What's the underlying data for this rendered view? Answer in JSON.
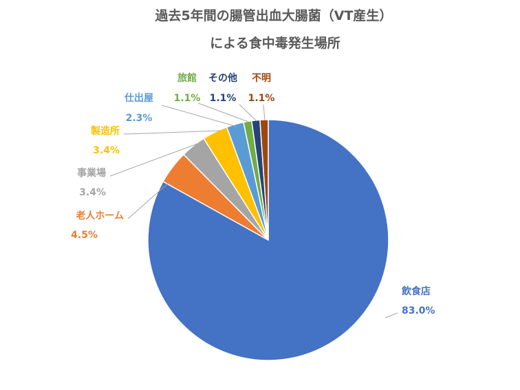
{
  "chart_data": {
    "type": "pie",
    "title_lines": [
      "過去5年間の腸管出血大腸菌（VT産生）",
      "による食中毒発生場所"
    ],
    "categories": [
      "飲食店",
      "老人ホーム",
      "事業場",
      "製造所",
      "仕出屋",
      "旅館",
      "その他",
      "不明"
    ],
    "values": [
      83.0,
      4.5,
      3.4,
      3.4,
      2.3,
      1.1,
      1.1,
      1.1
    ],
    "value_labels": [
      "83.0%",
      "4.5%",
      "3.4%",
      "3.4%",
      "2.3%",
      "1.1%",
      "1.1%",
      "1.1%"
    ],
    "colors": [
      "#4472C4",
      "#ED7D31",
      "#A5A5A5",
      "#FFC000",
      "#5B9BD5",
      "#70AD47",
      "#264478",
      "#9E480E"
    ],
    "legend": "none"
  }
}
